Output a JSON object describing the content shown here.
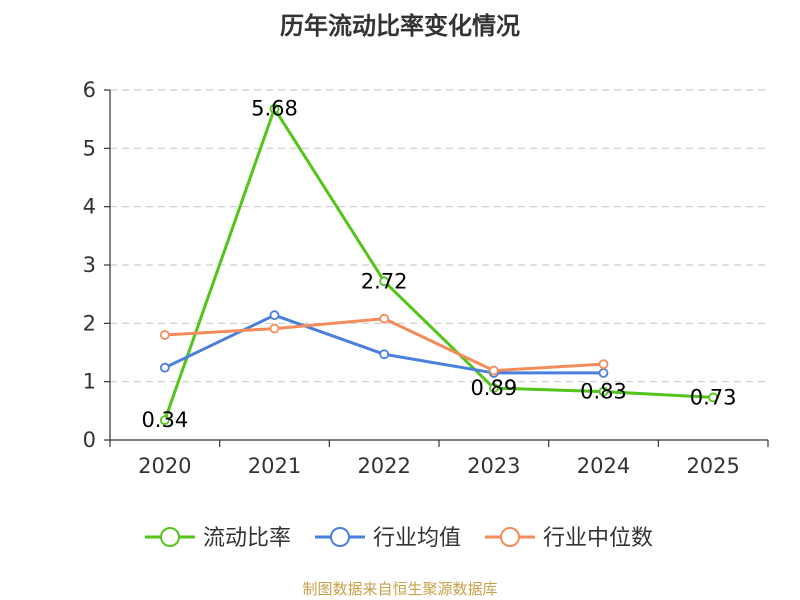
{
  "chart_data": {
    "type": "line",
    "title": "历年流动比率变化情况",
    "categories": [
      "2020",
      "2021",
      "2022",
      "2023",
      "2024",
      "2025"
    ],
    "ylim": [
      0,
      6
    ],
    "yticks": [
      "0",
      "1",
      "2",
      "3",
      "4",
      "5",
      "6"
    ],
    "grid": true,
    "legend_position": "bottom",
    "series": [
      {
        "name": "流动比率",
        "color": "#52c41a",
        "values": [
          0.34,
          5.68,
          2.72,
          0.89,
          0.83,
          0.73
        ],
        "labels": [
          "0.34",
          "5.68",
          "2.72",
          "0.89",
          "0.83",
          "0.73"
        ]
      },
      {
        "name": "行业均值",
        "color": "#4a7fdc",
        "values": [
          1.24,
          2.14,
          1.47,
          1.15,
          1.15,
          null
        ]
      },
      {
        "name": "行业中位数",
        "color": "#f48b5a",
        "values": [
          1.8,
          1.91,
          2.08,
          1.19,
          1.3,
          null
        ]
      }
    ]
  },
  "footer": {
    "source": "制图数据来自恒生聚源数据库"
  }
}
